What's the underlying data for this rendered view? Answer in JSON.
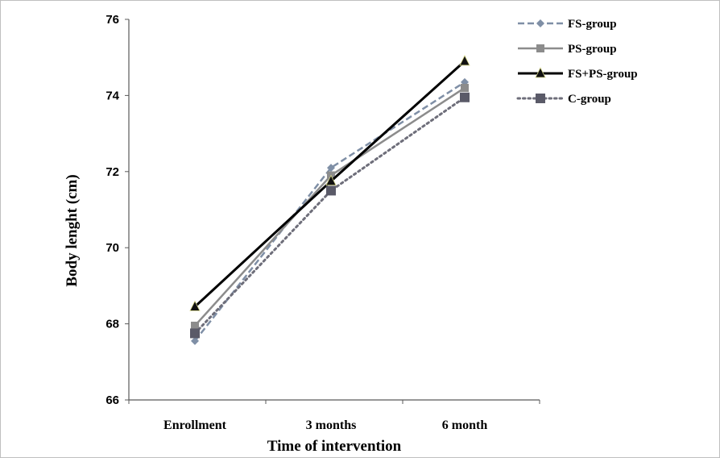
{
  "chart_data": {
    "type": "line",
    "title": "",
    "xlabel": "Time of intervention",
    "ylabel": "Body lenght (cm)",
    "ylim": [
      66,
      76
    ],
    "yticks": [
      "66",
      "68",
      "70",
      "72",
      "74",
      "76"
    ],
    "categories": [
      "Enrollment",
      "3 months",
      "6 month"
    ],
    "grid": false,
    "legend_position": "top-right",
    "series": [
      {
        "name": "FS-group",
        "values": [
          67.55,
          72.1,
          74.35
        ],
        "color": "#7f8fa6",
        "dash": "dashed",
        "marker": "diamond"
      },
      {
        "name": "PS-group",
        "values": [
          67.95,
          71.9,
          74.2
        ],
        "color": "#8c8c8c",
        "dash": "solid",
        "marker": "square"
      },
      {
        "name": "FS+PS-group",
        "values": [
          68.45,
          71.75,
          74.9
        ],
        "color": "#000000",
        "dash": "solid-thick",
        "marker": "triangle"
      },
      {
        "name": "C-group",
        "values": [
          67.75,
          71.5,
          73.95
        ],
        "color": "#6e6e7a",
        "dash": "dotted",
        "marker": "square-dark"
      }
    ]
  }
}
